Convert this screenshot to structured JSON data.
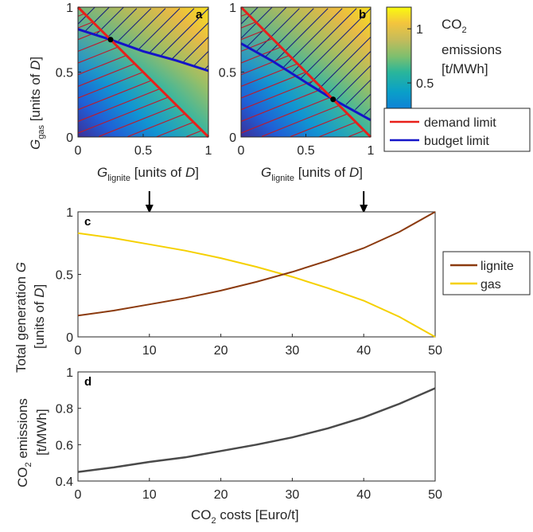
{
  "panels": {
    "a": {
      "letter": "a",
      "eq_lignite": 0.25,
      "eq_gas": 0.75
    },
    "b": {
      "letter": "b",
      "eq_lignite": 0.71,
      "eq_gas": 0.29
    },
    "c": {
      "letter": "c"
    },
    "d": {
      "letter": "d"
    }
  },
  "axes": {
    "G_main": "G",
    "gas_sub": "gas",
    "lignite_sub": "lignite",
    "units_D_prefix": " [units of ",
    "units_D_var": "D",
    "units_D_suffix": "]",
    "c_ylabel_line1_prefix": "Total generation ",
    "c_ylabel_line1_var": "G",
    "c_ylabel_line2_prefix": "[units of ",
    "c_ylabel_line2_var": "D",
    "c_ylabel_line2_suffix": "]",
    "d_ylabel_line1_pre": "CO",
    "d_ylabel_line1_sub": "2",
    "d_ylabel_line1_post": " emissions",
    "d_ylabel_line2": "[t/MWh]",
    "x_cost_pre": "CO",
    "x_cost_sub": "2",
    "x_cost_post": " costs [Euro/t]"
  },
  "colorbar": {
    "title_pre": "CO",
    "title_sub": "2",
    "line2": "emissions",
    "line3": "[t/MWh]",
    "ticks": [
      "0",
      "0.5",
      "1"
    ],
    "range": [
      0,
      1.2
    ]
  },
  "legend_top": [
    {
      "label": "demand limit",
      "color": "#e8201a"
    },
    {
      "label": "budget limit",
      "color": "#1414c8"
    }
  ],
  "legend_c": [
    {
      "label": "lignite",
      "color": "#8b3a0e"
    },
    {
      "label": "gas",
      "color": "#f5d000"
    }
  ],
  "arrows_at_cost": [
    10,
    40
  ],
  "chart_data": [
    {
      "type": "heatmap",
      "panel": "a",
      "xlabel": "G_lignite [units of D]",
      "ylabel": "G_gas [units of D]",
      "xlim": [
        0,
        1
      ],
      "ylim": [
        0,
        1
      ],
      "xticks": [
        "0",
        "0.5",
        "1"
      ],
      "yticks": [
        "0",
        "0.5",
        "1"
      ],
      "demand_limit": [
        [
          0,
          1
        ],
        [
          1,
          0
        ]
      ],
      "budget_limit": [
        [
          0,
          0.83
        ],
        [
          0.25,
          0.75
        ],
        [
          0.5,
          0.66
        ],
        [
          0.75,
          0.59
        ],
        [
          1,
          0.51
        ]
      ],
      "intersection": [
        0.25,
        0.75
      ]
    },
    {
      "type": "heatmap",
      "panel": "b",
      "xlabel": "G_lignite [units of D]",
      "ylabel": "",
      "xlim": [
        0,
        1
      ],
      "ylim": [
        0,
        1
      ],
      "xticks": [
        "0",
        "0.5",
        "1"
      ],
      "yticks": [
        "0",
        "0.5",
        "1"
      ],
      "demand_limit": [
        [
          0,
          1
        ],
        [
          1,
          0
        ]
      ],
      "budget_limit": [
        [
          0,
          0.72
        ],
        [
          0.25,
          0.58
        ],
        [
          0.5,
          0.42
        ],
        [
          0.71,
          0.29
        ],
        [
          1,
          0.13
        ]
      ],
      "intersection": [
        0.71,
        0.29
      ]
    },
    {
      "type": "line",
      "panel": "c",
      "xlabel": "",
      "ylabel": "Total generation G [units of D]",
      "xlim": [
        0,
        50
      ],
      "ylim": [
        0,
        1
      ],
      "xticks": [
        "0",
        "10",
        "20",
        "30",
        "40",
        "50"
      ],
      "yticks": [
        "0",
        "0.5",
        "1"
      ],
      "x": [
        0,
        5,
        10,
        15,
        20,
        25,
        30,
        35,
        40,
        45,
        50
      ],
      "series": [
        {
          "name": "lignite",
          "values": [
            0.17,
            0.21,
            0.26,
            0.31,
            0.37,
            0.44,
            0.52,
            0.61,
            0.71,
            0.84,
            1.0
          ]
        },
        {
          "name": "gas",
          "values": [
            0.83,
            0.79,
            0.74,
            0.69,
            0.63,
            0.56,
            0.48,
            0.39,
            0.29,
            0.16,
            0.0
          ]
        }
      ]
    },
    {
      "type": "line",
      "panel": "d",
      "xlabel": "CO2 costs [Euro/t]",
      "ylabel": "CO2 emissions [t/MWh]",
      "xlim": [
        0,
        50
      ],
      "ylim": [
        0.4,
        1
      ],
      "xticks": [
        "0",
        "10",
        "20",
        "30",
        "40",
        "50"
      ],
      "yticks": [
        "0.4",
        "0.6",
        "0.8",
        "1"
      ],
      "x": [
        0,
        5,
        10,
        15,
        20,
        25,
        30,
        35,
        40,
        45,
        50
      ],
      "series": [
        {
          "name": "",
          "values": [
            0.45,
            0.475,
            0.505,
            0.53,
            0.565,
            0.6,
            0.64,
            0.69,
            0.75,
            0.825,
            0.91
          ]
        }
      ]
    }
  ]
}
